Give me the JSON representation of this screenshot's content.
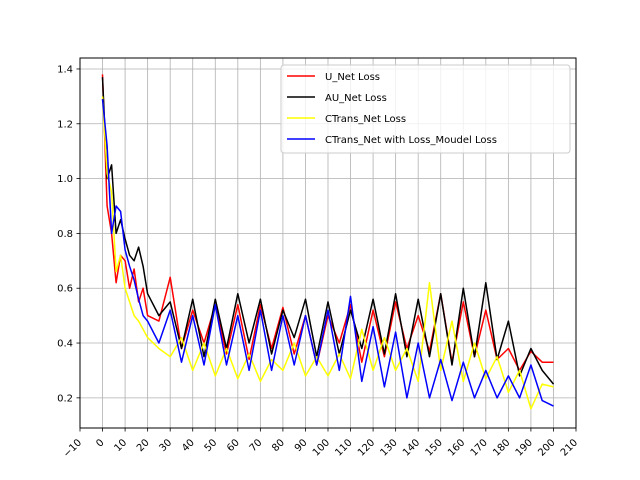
{
  "chart_data": {
    "type": "line",
    "title": "",
    "xlabel": "",
    "ylabel": "",
    "xlim": [
      -10,
      210
    ],
    "ylim": [
      0.09,
      1.44
    ],
    "grid": true,
    "legend_position": "upper-right",
    "x_ticks": [
      "−10",
      "0",
      "10",
      "20",
      "30",
      "40",
      "50",
      "60",
      "70",
      "80",
      "90",
      "100",
      "110",
      "120",
      "130",
      "140",
      "150",
      "160",
      "170",
      "180",
      "190",
      "200",
      "210"
    ],
    "x_tick_values": [
      -10,
      0,
      10,
      20,
      30,
      40,
      50,
      60,
      70,
      80,
      90,
      100,
      110,
      120,
      130,
      140,
      150,
      160,
      170,
      180,
      190,
      200,
      210
    ],
    "y_ticks": [
      "0.2",
      "0.4",
      "0.6",
      "0.8",
      "1.0",
      "1.2",
      "1.4"
    ],
    "y_tick_values": [
      0.2,
      0.4,
      0.6,
      0.8,
      1.0,
      1.2,
      1.4
    ],
    "series": [
      {
        "name": "U_Net Loss",
        "color": "#ff0000",
        "x": [
          0,
          2,
          4,
          6,
          8,
          10,
          12,
          14,
          16,
          18,
          20,
          25,
          30,
          35,
          40,
          45,
          50,
          55,
          60,
          65,
          70,
          75,
          80,
          85,
          90,
          95,
          100,
          105,
          110,
          115,
          120,
          125,
          130,
          135,
          140,
          145,
          150,
          155,
          160,
          165,
          170,
          175,
          180,
          185,
          190,
          195,
          200
        ],
        "values": [
          1.38,
          0.9,
          0.8,
          0.62,
          0.72,
          0.7,
          0.6,
          0.67,
          0.55,
          0.6,
          0.5,
          0.48,
          0.64,
          0.38,
          0.52,
          0.4,
          0.54,
          0.36,
          0.54,
          0.34,
          0.54,
          0.38,
          0.53,
          0.36,
          0.5,
          0.32,
          0.5,
          0.4,
          0.54,
          0.33,
          0.52,
          0.35,
          0.55,
          0.38,
          0.5,
          0.37,
          0.58,
          0.33,
          0.55,
          0.35,
          0.52,
          0.34,
          0.38,
          0.3,
          0.37,
          0.33,
          0.33
        ]
      },
      {
        "name": "AU_Net Loss",
        "color": "#000000",
        "x": [
          0,
          2,
          4,
          6,
          8,
          10,
          12,
          14,
          16,
          18,
          20,
          25,
          30,
          35,
          40,
          45,
          50,
          55,
          60,
          65,
          70,
          75,
          80,
          85,
          90,
          95,
          100,
          105,
          110,
          115,
          120,
          125,
          130,
          135,
          140,
          145,
          150,
          155,
          160,
          165,
          170,
          175,
          180,
          185,
          190,
          195,
          200
        ],
        "values": [
          1.37,
          1.0,
          1.05,
          0.8,
          0.85,
          0.78,
          0.72,
          0.7,
          0.75,
          0.68,
          0.58,
          0.5,
          0.55,
          0.38,
          0.56,
          0.35,
          0.56,
          0.38,
          0.58,
          0.4,
          0.56,
          0.36,
          0.52,
          0.42,
          0.56,
          0.35,
          0.55,
          0.36,
          0.52,
          0.38,
          0.56,
          0.36,
          0.58,
          0.35,
          0.56,
          0.35,
          0.58,
          0.32,
          0.6,
          0.35,
          0.62,
          0.34,
          0.48,
          0.28,
          0.38,
          0.3,
          0.25
        ]
      },
      {
        "name": "CTrans_Net Loss",
        "color": "#ffff00",
        "x": [
          0,
          2,
          4,
          6,
          8,
          10,
          12,
          14,
          16,
          18,
          20,
          25,
          30,
          35,
          40,
          45,
          50,
          55,
          60,
          65,
          70,
          75,
          80,
          85,
          90,
          95,
          100,
          105,
          110,
          115,
          120,
          125,
          130,
          135,
          140,
          145,
          150,
          155,
          160,
          165,
          170,
          175,
          180,
          185,
          190,
          195,
          200
        ],
        "values": [
          1.3,
          1.02,
          0.95,
          0.66,
          0.72,
          0.6,
          0.55,
          0.5,
          0.48,
          0.45,
          0.42,
          0.38,
          0.35,
          0.42,
          0.3,
          0.4,
          0.28,
          0.38,
          0.27,
          0.36,
          0.26,
          0.34,
          0.3,
          0.4,
          0.28,
          0.35,
          0.28,
          0.36,
          0.27,
          0.45,
          0.3,
          0.42,
          0.3,
          0.38,
          0.26,
          0.62,
          0.3,
          0.48,
          0.26,
          0.4,
          0.27,
          0.35,
          0.22,
          0.3,
          0.16,
          0.25,
          0.24
        ]
      },
      {
        "name": "CTrans_Net with Loss_Moudel Loss",
        "color": "#0000ff",
        "x": [
          0,
          2,
          4,
          6,
          8,
          10,
          12,
          14,
          16,
          18,
          20,
          25,
          30,
          35,
          40,
          45,
          50,
          55,
          60,
          65,
          70,
          75,
          80,
          85,
          90,
          95,
          100,
          105,
          110,
          115,
          120,
          125,
          130,
          135,
          140,
          145,
          150,
          155,
          160,
          165,
          170,
          175,
          180,
          185,
          190,
          195,
          200
        ],
        "values": [
          1.29,
          1.12,
          0.8,
          0.9,
          0.88,
          0.74,
          0.68,
          0.63,
          0.56,
          0.5,
          0.48,
          0.4,
          0.52,
          0.33,
          0.5,
          0.32,
          0.54,
          0.32,
          0.5,
          0.3,
          0.52,
          0.3,
          0.5,
          0.32,
          0.5,
          0.32,
          0.52,
          0.3,
          0.57,
          0.26,
          0.46,
          0.24,
          0.44,
          0.2,
          0.4,
          0.2,
          0.34,
          0.19,
          0.33,
          0.2,
          0.3,
          0.2,
          0.28,
          0.2,
          0.32,
          0.19,
          0.17
        ]
      }
    ]
  }
}
